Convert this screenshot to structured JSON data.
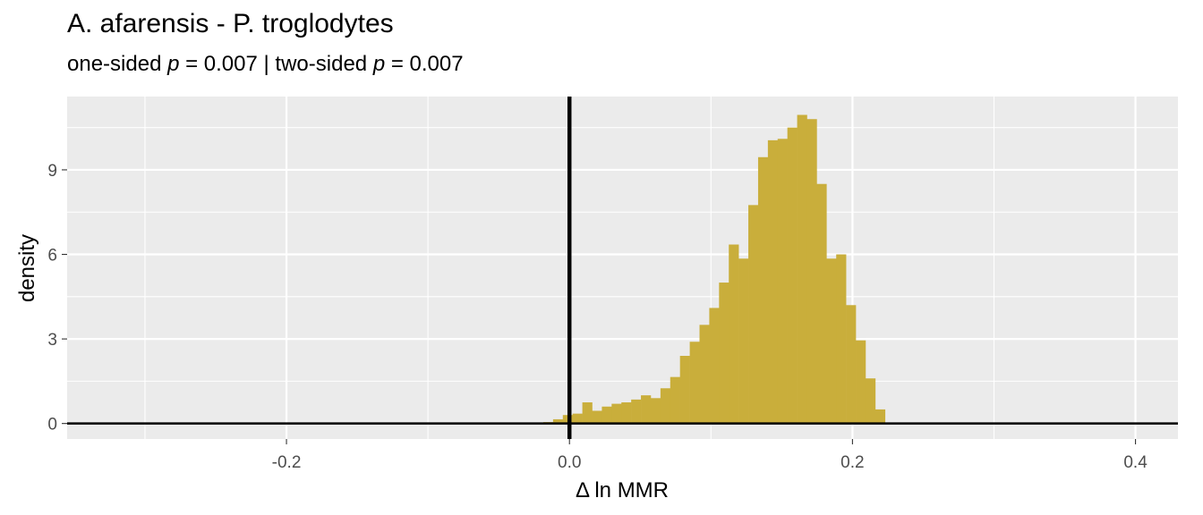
{
  "chart_data": {
    "type": "bar",
    "title": "A. afarensis - P. troglodytes",
    "subtitle": {
      "part1": "one-sided ",
      "p1": "p",
      "part2": " = 0.007 | two-sided ",
      "p2": "p",
      "part3": " = 0.007"
    },
    "xlabel": "Δ ln MMR",
    "ylabel": "density",
    "xlim": [
      -0.355,
      0.43
    ],
    "ylim": [
      -0.55,
      11.6
    ],
    "x_ticks": [
      -0.2,
      0.0,
      0.2,
      0.4
    ],
    "x_tick_labels": [
      "-0.2",
      "0.0",
      "0.2",
      "0.4"
    ],
    "y_ticks": [
      0,
      3,
      6,
      9
    ],
    "y_tick_labels": [
      "0",
      "3",
      "6",
      "9"
    ],
    "grid": true,
    "vline_x": 0,
    "hline_y": 0,
    "bar_color": "#C9AE3B",
    "bin_width": 0.0069,
    "bins": [
      {
        "x": -0.0185,
        "y": 0.05
      },
      {
        "x": -0.0116,
        "y": 0.15
      },
      {
        "x": -0.0047,
        "y": 0.3
      },
      {
        "x": 0.0022,
        "y": 0.35
      },
      {
        "x": 0.0091,
        "y": 0.75
      },
      {
        "x": 0.016,
        "y": 0.45
      },
      {
        "x": 0.0229,
        "y": 0.6
      },
      {
        "x": 0.0298,
        "y": 0.7
      },
      {
        "x": 0.0367,
        "y": 0.75
      },
      {
        "x": 0.0436,
        "y": 0.85
      },
      {
        "x": 0.0505,
        "y": 1.0
      },
      {
        "x": 0.0574,
        "y": 0.9
      },
      {
        "x": 0.0643,
        "y": 1.25
      },
      {
        "x": 0.0712,
        "y": 1.65
      },
      {
        "x": 0.0781,
        "y": 2.4
      },
      {
        "x": 0.085,
        "y": 2.9
      },
      {
        "x": 0.0919,
        "y": 3.5
      },
      {
        "x": 0.0988,
        "y": 4.1
      },
      {
        "x": 0.1057,
        "y": 5.0
      },
      {
        "x": 0.1126,
        "y": 6.35
      },
      {
        "x": 0.1195,
        "y": 5.85
      },
      {
        "x": 0.1264,
        "y": 7.75
      },
      {
        "x": 0.1333,
        "y": 9.45
      },
      {
        "x": 0.1402,
        "y": 10.05
      },
      {
        "x": 0.1471,
        "y": 10.1
      },
      {
        "x": 0.154,
        "y": 10.5
      },
      {
        "x": 0.1609,
        "y": 10.95
      },
      {
        "x": 0.1678,
        "y": 10.8
      },
      {
        "x": 0.1747,
        "y": 8.5
      },
      {
        "x": 0.1816,
        "y": 5.85
      },
      {
        "x": 0.1885,
        "y": 6.0
      },
      {
        "x": 0.1954,
        "y": 4.2
      },
      {
        "x": 0.2023,
        "y": 2.95
      },
      {
        "x": 0.2092,
        "y": 1.6
      },
      {
        "x": 0.2161,
        "y": 0.5
      }
    ]
  }
}
